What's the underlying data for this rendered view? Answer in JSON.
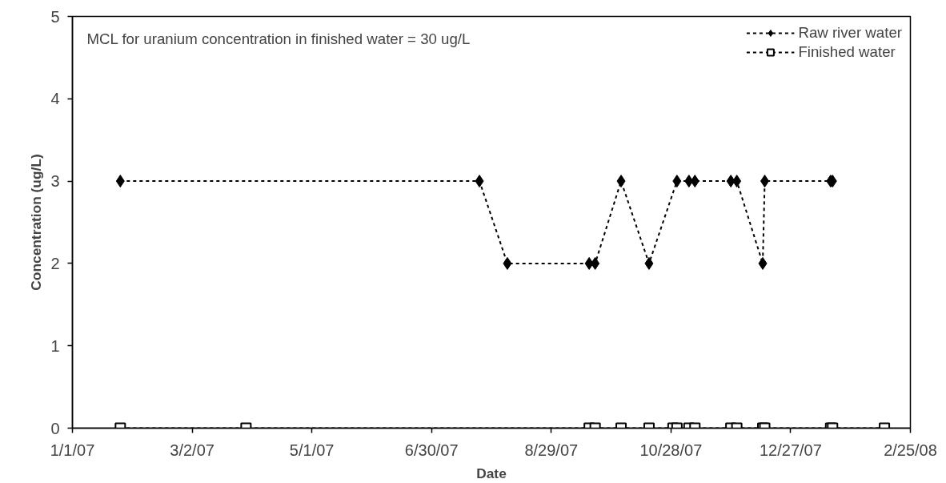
{
  "chart_data": {
    "type": "line",
    "xlabel": "Date",
    "ylabel": "Concentration (ug/L)",
    "annotations": [
      "MCL for uranium concentration  in finished water = 30 ug/L"
    ],
    "xlim": [
      "2007-01-01",
      "2008-02-25"
    ],
    "ylim": [
      0,
      5
    ],
    "xticks": [
      {
        "value": "2007-01-01",
        "label": "1/1/07"
      },
      {
        "value": "2007-03-02",
        "label": "3/2/07"
      },
      {
        "value": "2007-05-01",
        "label": "5/1/07"
      },
      {
        "value": "2007-06-30",
        "label": "6/30/07"
      },
      {
        "value": "2007-08-29",
        "label": "8/29/07"
      },
      {
        "value": "2007-10-28",
        "label": "10/28/07"
      },
      {
        "value": "2007-12-27",
        "label": "12/27/07"
      },
      {
        "value": "2008-02-25",
        "label": "2/25/08"
      }
    ],
    "yticks": [
      0,
      1,
      2,
      3,
      4,
      5
    ],
    "grid": false,
    "legend": "top right",
    "line_style": "dotted",
    "series": [
      {
        "name": "Raw river water",
        "color": "#000000",
        "marker": "diamond",
        "x": [
          "2007-01-25",
          "2007-07-24",
          "2007-08-07",
          "2007-09-17",
          "2007-09-20",
          "2007-10-03",
          "2007-10-17",
          "2007-10-31",
          "2007-11-06",
          "2007-11-09",
          "2007-11-27",
          "2007-11-30",
          "2007-12-13",
          "2007-12-14",
          "2008-01-16",
          "2008-01-17"
        ],
        "values": [
          3,
          3,
          2,
          2,
          2,
          3,
          2,
          3,
          3,
          3,
          3,
          3,
          2,
          3,
          3,
          3
        ]
      },
      {
        "name": "Finished water",
        "color": "#000000",
        "marker": "square",
        "x": [
          "2007-01-25",
          "2007-03-29",
          "2007-09-17",
          "2007-09-20",
          "2007-10-03",
          "2007-10-17",
          "2007-10-29",
          "2007-10-31",
          "2007-11-06",
          "2007-11-09",
          "2007-11-27",
          "2007-11-30",
          "2007-12-13",
          "2007-12-14",
          "2008-01-16",
          "2008-01-17",
          "2008-02-12"
        ],
        "values": [
          0,
          0,
          0,
          0,
          0,
          0,
          0,
          0,
          0,
          0,
          0,
          0,
          0,
          0,
          0,
          0,
          0
        ]
      }
    ]
  }
}
